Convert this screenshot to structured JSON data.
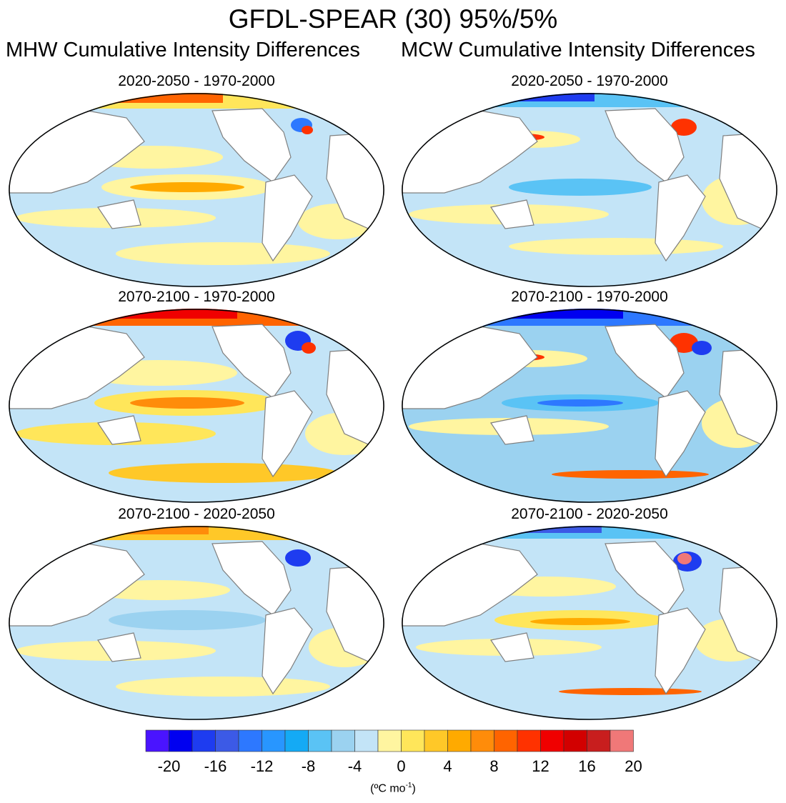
{
  "title": "GFDL-SPEAR (30) 95%/5%",
  "columns": [
    {
      "title": "MHW Cumulative Intensity Differences"
    },
    {
      "title": "MCW Cumulative Intensity Differences"
    }
  ],
  "panels": [
    {
      "title": "2020-2050 - 1970-2000"
    },
    {
      "title": "2020-2050 - 1970-2000"
    },
    {
      "title": "2070-2100 - 1970-2000"
    },
    {
      "title": "2070-2100 - 1970-2000"
    },
    {
      "title": "2070-2100 - 2020-2050"
    },
    {
      "title": "2070-2100 - 2020-2050"
    }
  ],
  "colorbar": {
    "tick_labels": [
      "-20",
      "-16",
      "-12",
      "-8",
      "-4",
      "0",
      "4",
      "8",
      "12",
      "16",
      "20"
    ],
    "units_label": "(ºC mo",
    "units_sup": "-1",
    "units_close": ")",
    "colors": [
      "#4a14ff",
      "#0000f0",
      "#1e3cf0",
      "#3c5ae6",
      "#2d78ff",
      "#2896ff",
      "#14aaf5",
      "#5ac3f5",
      "#9bd2f0",
      "#c3e4f7",
      "#fff5a0",
      "#ffe65a",
      "#ffc828",
      "#ffaa00",
      "#ff8c0a",
      "#ff6400",
      "#ff3200",
      "#f00000",
      "#d20000",
      "#c81e1e",
      "#f07878"
    ]
  }
}
